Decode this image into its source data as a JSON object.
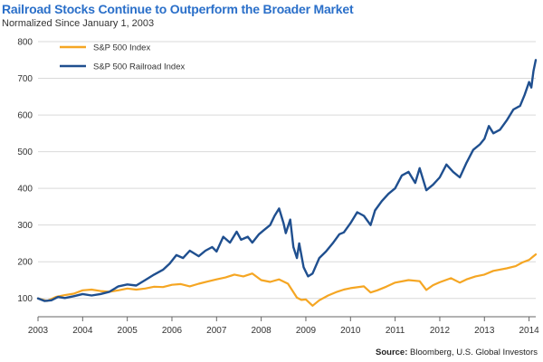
{
  "chart_data": {
    "type": "line",
    "title": "Railroad Stocks Continue to Outperform the Broader Market",
    "subtitle": "Normalized Since January 1, 2003",
    "xlabel": "",
    "ylabel": "",
    "xlim": [
      2003,
      2014.15
    ],
    "ylim": [
      50,
      800
    ],
    "xticks": [
      "2003",
      "2004",
      "2005",
      "2006",
      "2007",
      "2008",
      "2009",
      "2010",
      "2011",
      "2012",
      "2013",
      "2014"
    ],
    "yticks": [
      "100",
      "200",
      "300",
      "400",
      "500",
      "600",
      "700",
      "800"
    ],
    "grid": "horizontal",
    "legend_position": "top-left",
    "series": [
      {
        "name": "S&P 500 Index",
        "color": "#f5a623",
        "points": [
          [
            2003.0,
            100
          ],
          [
            2003.2,
            93
          ],
          [
            2003.4,
            104
          ],
          [
            2003.6,
            109
          ],
          [
            2003.8,
            113
          ],
          [
            2004.0,
            122
          ],
          [
            2004.2,
            124
          ],
          [
            2004.4,
            120
          ],
          [
            2004.6,
            118
          ],
          [
            2004.8,
            122
          ],
          [
            2005.0,
            127
          ],
          [
            2005.2,
            124
          ],
          [
            2005.4,
            127
          ],
          [
            2005.6,
            132
          ],
          [
            2005.8,
            131
          ],
          [
            2006.0,
            137
          ],
          [
            2006.2,
            139
          ],
          [
            2006.4,
            133
          ],
          [
            2006.6,
            140
          ],
          [
            2006.8,
            146
          ],
          [
            2007.0,
            152
          ],
          [
            2007.2,
            157
          ],
          [
            2007.4,
            165
          ],
          [
            2007.6,
            160
          ],
          [
            2007.8,
            168
          ],
          [
            2008.0,
            150
          ],
          [
            2008.2,
            145
          ],
          [
            2008.4,
            152
          ],
          [
            2008.6,
            140
          ],
          [
            2008.8,
            102
          ],
          [
            2008.9,
            96
          ],
          [
            2009.0,
            97
          ],
          [
            2009.15,
            80
          ],
          [
            2009.3,
            95
          ],
          [
            2009.5,
            108
          ],
          [
            2009.7,
            118
          ],
          [
            2009.85,
            124
          ],
          [
            2010.0,
            128
          ],
          [
            2010.3,
            133
          ],
          [
            2010.45,
            116
          ],
          [
            2010.6,
            122
          ],
          [
            2010.8,
            132
          ],
          [
            2011.0,
            143
          ],
          [
            2011.3,
            150
          ],
          [
            2011.55,
            147
          ],
          [
            2011.7,
            123
          ],
          [
            2011.85,
            136
          ],
          [
            2012.0,
            144
          ],
          [
            2012.25,
            155
          ],
          [
            2012.45,
            143
          ],
          [
            2012.6,
            152
          ],
          [
            2012.8,
            160
          ],
          [
            2013.0,
            165
          ],
          [
            2013.2,
            175
          ],
          [
            2013.5,
            182
          ],
          [
            2013.7,
            188
          ],
          [
            2013.85,
            198
          ],
          [
            2014.0,
            205
          ],
          [
            2014.1,
            215
          ],
          [
            2014.15,
            220
          ]
        ]
      },
      {
        "name": "S&P 500 Railroad Index",
        "color": "#1f4f8f",
        "points": [
          [
            2003.0,
            100
          ],
          [
            2003.15,
            93
          ],
          [
            2003.3,
            95
          ],
          [
            2003.45,
            104
          ],
          [
            2003.6,
            101
          ],
          [
            2003.8,
            106
          ],
          [
            2004.0,
            112
          ],
          [
            2004.2,
            108
          ],
          [
            2004.4,
            112
          ],
          [
            2004.6,
            118
          ],
          [
            2004.8,
            133
          ],
          [
            2005.0,
            138
          ],
          [
            2005.2,
            135
          ],
          [
            2005.4,
            150
          ],
          [
            2005.6,
            165
          ],
          [
            2005.8,
            178
          ],
          [
            2005.95,
            195
          ],
          [
            2006.1,
            218
          ],
          [
            2006.25,
            210
          ],
          [
            2006.4,
            230
          ],
          [
            2006.6,
            215
          ],
          [
            2006.75,
            230
          ],
          [
            2006.9,
            240
          ],
          [
            2007.0,
            228
          ],
          [
            2007.15,
            268
          ],
          [
            2007.3,
            252
          ],
          [
            2007.45,
            282
          ],
          [
            2007.55,
            260
          ],
          [
            2007.7,
            268
          ],
          [
            2007.8,
            252
          ],
          [
            2007.95,
            275
          ],
          [
            2008.05,
            285
          ],
          [
            2008.2,
            300
          ],
          [
            2008.3,
            325
          ],
          [
            2008.4,
            345
          ],
          [
            2008.5,
            305
          ],
          [
            2008.55,
            278
          ],
          [
            2008.65,
            315
          ],
          [
            2008.72,
            240
          ],
          [
            2008.8,
            210
          ],
          [
            2008.85,
            250
          ],
          [
            2008.95,
            185
          ],
          [
            2009.05,
            160
          ],
          [
            2009.15,
            168
          ],
          [
            2009.3,
            210
          ],
          [
            2009.45,
            228
          ],
          [
            2009.6,
            250
          ],
          [
            2009.75,
            275
          ],
          [
            2009.85,
            280
          ],
          [
            2010.0,
            305
          ],
          [
            2010.15,
            335
          ],
          [
            2010.3,
            325
          ],
          [
            2010.45,
            300
          ],
          [
            2010.55,
            340
          ],
          [
            2010.7,
            365
          ],
          [
            2010.85,
            385
          ],
          [
            2011.0,
            400
          ],
          [
            2011.15,
            435
          ],
          [
            2011.3,
            445
          ],
          [
            2011.45,
            415
          ],
          [
            2011.55,
            455
          ],
          [
            2011.7,
            395
          ],
          [
            2011.85,
            410
          ],
          [
            2012.0,
            430
          ],
          [
            2012.15,
            465
          ],
          [
            2012.3,
            445
          ],
          [
            2012.45,
            430
          ],
          [
            2012.6,
            470
          ],
          [
            2012.75,
            505
          ],
          [
            2012.9,
            520
          ],
          [
            2013.0,
            535
          ],
          [
            2013.1,
            570
          ],
          [
            2013.2,
            550
          ],
          [
            2013.35,
            560
          ],
          [
            2013.5,
            585
          ],
          [
            2013.65,
            615
          ],
          [
            2013.8,
            625
          ],
          [
            2013.9,
            655
          ],
          [
            2014.0,
            690
          ],
          [
            2014.05,
            675
          ],
          [
            2014.1,
            720
          ],
          [
            2014.15,
            750
          ]
        ]
      }
    ]
  },
  "source": {
    "label": "Source:",
    "text": " Bloomberg, U.S. Global Investors"
  }
}
